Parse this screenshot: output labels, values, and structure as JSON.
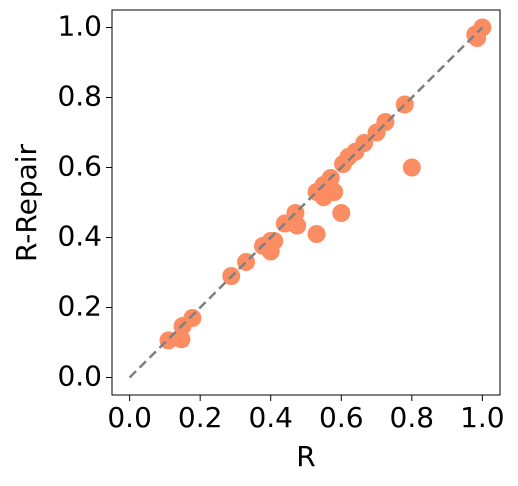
{
  "chart_data": {
    "type": "scatter",
    "x_label": "R",
    "y_label": "R-Repair",
    "x": [
      0.11,
      0.15,
      0.147,
      0.178,
      0.288,
      0.33,
      0.378,
      0.4,
      0.4,
      0.41,
      0.44,
      0.47,
      0.475,
      0.53,
      0.53,
      0.55,
      0.55,
      0.57,
      0.58,
      0.6,
      0.605,
      0.62,
      0.64,
      0.665,
      0.7,
      0.725,
      0.78,
      0.8,
      0.98,
      0.985,
      1.0
    ],
    "y": [
      0.106,
      0.147,
      0.109,
      0.17,
      0.29,
      0.33,
      0.376,
      0.36,
      0.39,
      0.39,
      0.44,
      0.47,
      0.434,
      0.41,
      0.53,
      0.55,
      0.515,
      0.57,
      0.53,
      0.47,
      0.61,
      0.63,
      0.645,
      0.67,
      0.7,
      0.73,
      0.78,
      0.6,
      0.98,
      0.97,
      1.0
    ],
    "color": "#fc8d62",
    "reference_line": {
      "x": [
        0,
        1
      ],
      "y": [
        0,
        1
      ],
      "color": "#7f7f7f",
      "style": "dashed"
    },
    "xlim": [
      -0.05,
      1.05
    ],
    "ylim": [
      -0.05,
      1.05
    ],
    "xticks": [
      {
        "value": 0,
        "label": "0.0"
      },
      0.2,
      0.4,
      0.6,
      0.8,
      {
        "value": 1,
        "label": "1.0"
      }
    ],
    "yticks": [
      {
        "value": 0,
        "label": "0.0"
      },
      0.2,
      0.4,
      0.6,
      0.8,
      {
        "value": 1,
        "label": "1.0"
      }
    ],
    "grid": false
  }
}
